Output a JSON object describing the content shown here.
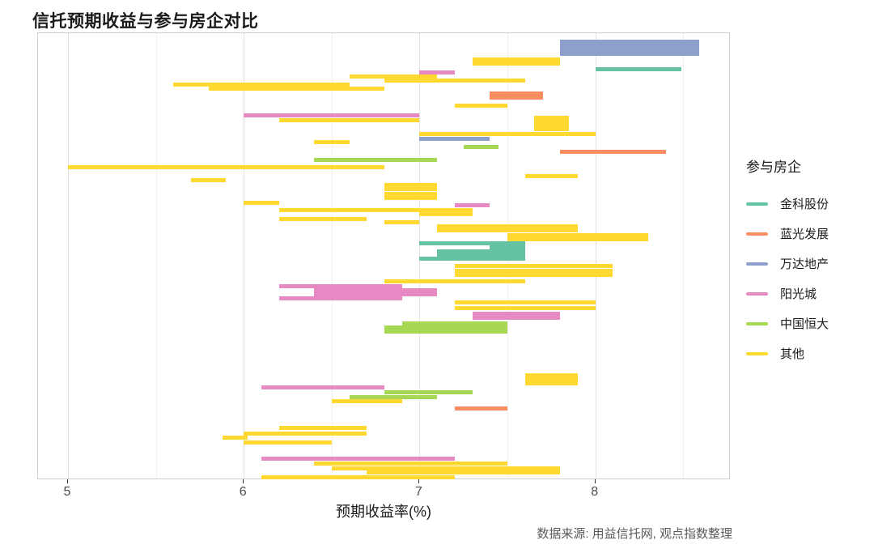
{
  "title": "信托预期收益与参与房企对比",
  "caption": "数据来源: 用益信托网, 观点指数整理",
  "chart_data": {
    "type": "bar",
    "subtype": "horizontal-segment-chart",
    "title": "信托预期收益与参与房企对比",
    "xlabel": "预期收益率(%)",
    "ylabel": "",
    "xlim": [
      4.83,
      8.77
    ],
    "x_ticks": [
      5,
      6,
      7,
      8
    ],
    "x_minor_ticks": [
      5.5,
      6.5,
      7.5,
      8.5
    ],
    "grid": "vertical-only",
    "legend_title": "参与房企",
    "legend_position": "right",
    "series": [
      {
        "name": "金科股份",
        "color": "#66C2A5"
      },
      {
        "name": "蓝光发展",
        "color": "#FC8D62"
      },
      {
        "name": "万达地产",
        "color": "#8DA0CB"
      },
      {
        "name": "阳光城",
        "color": "#E78AC3"
      },
      {
        "name": "中国恒大",
        "color": "#A6D854"
      },
      {
        "name": "其他",
        "color": "#FFD92F"
      }
    ],
    "segments": [
      {
        "y": 50,
        "company": "万达地产",
        "x1": 7.8,
        "x2": 8.59
      },
      {
        "y": 55,
        "company": "万达地产",
        "x1": 7.8,
        "x2": 8.59
      },
      {
        "y": 60,
        "company": "万达地产",
        "x1": 7.8,
        "x2": 8.59
      },
      {
        "y": 65,
        "company": "万达地产",
        "x1": 7.8,
        "x2": 8.59
      },
      {
        "y": 72,
        "company": "其他",
        "x1": 7.3,
        "x2": 7.8
      },
      {
        "y": 77,
        "company": "其他",
        "x1": 7.3,
        "x2": 7.8
      },
      {
        "y": 84,
        "company": "金科股份",
        "x1": 8.0,
        "x2": 8.49
      },
      {
        "y": 88,
        "company": "阳光城",
        "x1": 7.0,
        "x2": 7.2
      },
      {
        "y": 93,
        "company": "其他",
        "x1": 6.6,
        "x2": 7.1
      },
      {
        "y": 98,
        "company": "其他",
        "x1": 6.8,
        "x2": 7.6
      },
      {
        "y": 103,
        "company": "其他",
        "x1": 5.6,
        "x2": 6.6
      },
      {
        "y": 108,
        "company": "其他",
        "x1": 5.8,
        "x2": 6.8
      },
      {
        "y": 114,
        "company": "蓝光发展",
        "x1": 7.4,
        "x2": 7.7
      },
      {
        "y": 119,
        "company": "蓝光发展",
        "x1": 7.4,
        "x2": 7.7
      },
      {
        "y": 129,
        "company": "其他",
        "x1": 7.2,
        "x2": 7.5
      },
      {
        "y": 141,
        "company": "阳光城",
        "x1": 6.0,
        "x2": 7.0
      },
      {
        "y": 144,
        "company": "其他",
        "x1": 7.65,
        "x2": 7.85
      },
      {
        "y": 147,
        "company": "其他",
        "x1": 6.2,
        "x2": 7.0
      },
      {
        "y": 149,
        "company": "其他",
        "x1": 7.65,
        "x2": 7.85
      },
      {
        "y": 153,
        "company": "其他",
        "x1": 7.65,
        "x2": 7.85
      },
      {
        "y": 158,
        "company": "其他",
        "x1": 7.65,
        "x2": 7.85
      },
      {
        "y": 164,
        "company": "其他",
        "x1": 7.0,
        "x2": 8.0
      },
      {
        "y": 170,
        "company": "万达地产",
        "x1": 7.0,
        "x2": 7.4
      },
      {
        "y": 174,
        "company": "其他",
        "x1": 6.4,
        "x2": 6.6
      },
      {
        "y": 180,
        "company": "中国恒大",
        "x1": 7.25,
        "x2": 7.45
      },
      {
        "y": 186,
        "company": "蓝光发展",
        "x1": 7.8,
        "x2": 8.4
      },
      {
        "y": 196,
        "company": "中国恒大",
        "x1": 6.4,
        "x2": 7.1
      },
      {
        "y": 205,
        "company": "其他",
        "x1": 5.0,
        "x2": 6.8
      },
      {
        "y": 216,
        "company": "其他",
        "x1": 7.6,
        "x2": 7.9
      },
      {
        "y": 221,
        "company": "其他",
        "x1": 5.7,
        "x2": 5.9
      },
      {
        "y": 227,
        "company": "其他",
        "x1": 6.8,
        "x2": 7.1
      },
      {
        "y": 232,
        "company": "其他",
        "x1": 6.8,
        "x2": 7.1
      },
      {
        "y": 238,
        "company": "其他",
        "x1": 6.8,
        "x2": 7.1
      },
      {
        "y": 243,
        "company": "其他",
        "x1": 6.8,
        "x2": 7.1
      },
      {
        "y": 249,
        "company": "其他",
        "x1": 6.0,
        "x2": 6.2
      },
      {
        "y": 252,
        "company": "阳光城",
        "x1": 7.2,
        "x2": 7.4
      },
      {
        "y": 258,
        "company": "其他",
        "x1": 6.2,
        "x2": 7.3
      },
      {
        "y": 263,
        "company": "其他",
        "x1": 7.0,
        "x2": 7.3
      },
      {
        "y": 269,
        "company": "其他",
        "x1": 6.2,
        "x2": 6.7
      },
      {
        "y": 273,
        "company": "其他",
        "x1": 6.8,
        "x2": 7.0
      },
      {
        "y": 278,
        "company": "其他",
        "x1": 7.1,
        "x2": 7.9
      },
      {
        "y": 283,
        "company": "其他",
        "x1": 7.1,
        "x2": 7.9
      },
      {
        "y": 289,
        "company": "其他",
        "x1": 7.5,
        "x2": 8.3
      },
      {
        "y": 294,
        "company": "其他",
        "x1": 7.5,
        "x2": 8.3
      },
      {
        "y": 299,
        "company": "金科股份",
        "x1": 7.0,
        "x2": 7.6
      },
      {
        "y": 304,
        "company": "金科股份",
        "x1": 7.4,
        "x2": 7.6
      },
      {
        "y": 309,
        "company": "金科股份",
        "x1": 7.1,
        "x2": 7.6
      },
      {
        "y": 313,
        "company": "金科股份",
        "x1": 7.1,
        "x2": 7.6
      },
      {
        "y": 318,
        "company": "金科股份",
        "x1": 7.0,
        "x2": 7.6
      },
      {
        "y": 327,
        "company": "其他",
        "x1": 7.2,
        "x2": 8.1
      },
      {
        "y": 333,
        "company": "其他",
        "x1": 7.2,
        "x2": 8.1
      },
      {
        "y": 338,
        "company": "其他",
        "x1": 7.2,
        "x2": 8.1
      },
      {
        "y": 346,
        "company": "其他",
        "x1": 6.8,
        "x2": 7.6
      },
      {
        "y": 352,
        "company": "阳光城",
        "x1": 6.2,
        "x2": 6.9
      },
      {
        "y": 357,
        "company": "阳光城",
        "x1": 6.4,
        "x2": 7.1
      },
      {
        "y": 362,
        "company": "阳光城",
        "x1": 6.4,
        "x2": 7.1
      },
      {
        "y": 367,
        "company": "阳光城",
        "x1": 6.2,
        "x2": 6.9
      },
      {
        "y": 372,
        "company": "其他",
        "x1": 7.2,
        "x2": 8.0
      },
      {
        "y": 379,
        "company": "其他",
        "x1": 7.2,
        "x2": 8.0
      },
      {
        "y": 386,
        "company": "阳光城",
        "x1": 7.3,
        "x2": 7.8
      },
      {
        "y": 391,
        "company": "阳光城",
        "x1": 7.3,
        "x2": 7.8
      },
      {
        "y": 398,
        "company": "中国恒大",
        "x1": 6.9,
        "x2": 7.5
      },
      {
        "y": 403,
        "company": "中国恒大",
        "x1": 6.8,
        "x2": 7.5
      },
      {
        "y": 408,
        "company": "中国恒大",
        "x1": 6.8,
        "x2": 7.5
      },
      {
        "y": 462,
        "company": "其他",
        "x1": 7.6,
        "x2": 7.9
      },
      {
        "y": 467,
        "company": "其他",
        "x1": 7.6,
        "x2": 7.9
      },
      {
        "y": 472,
        "company": "其他",
        "x1": 7.6,
        "x2": 7.9
      },
      {
        "y": 477,
        "company": "阳光城",
        "x1": 6.1,
        "x2": 6.8
      },
      {
        "y": 483,
        "company": "中国恒大",
        "x1": 6.8,
        "x2": 7.3
      },
      {
        "y": 489,
        "company": "中国恒大",
        "x1": 6.6,
        "x2": 7.1
      },
      {
        "y": 494,
        "company": "其他",
        "x1": 6.5,
        "x2": 6.9
      },
      {
        "y": 503,
        "company": "蓝光发展",
        "x1": 7.2,
        "x2": 7.5
      },
      {
        "y": 527,
        "company": "其他",
        "x1": 6.2,
        "x2": 6.7
      },
      {
        "y": 534,
        "company": "其他",
        "x1": 6.0,
        "x2": 6.7
      },
      {
        "y": 539,
        "company": "其他",
        "x1": 5.88,
        "x2": 6.02
      },
      {
        "y": 545,
        "company": "其他",
        "x1": 6.0,
        "x2": 6.5
      },
      {
        "y": 565,
        "company": "阳光城",
        "x1": 6.1,
        "x2": 7.2
      },
      {
        "y": 571,
        "company": "其他",
        "x1": 6.4,
        "x2": 7.5
      },
      {
        "y": 577,
        "company": "其他",
        "x1": 6.5,
        "x2": 7.8
      },
      {
        "y": 582,
        "company": "其他",
        "x1": 6.7,
        "x2": 7.8
      },
      {
        "y": 588,
        "company": "其他",
        "x1": 6.1,
        "x2": 7.2
      }
    ]
  }
}
